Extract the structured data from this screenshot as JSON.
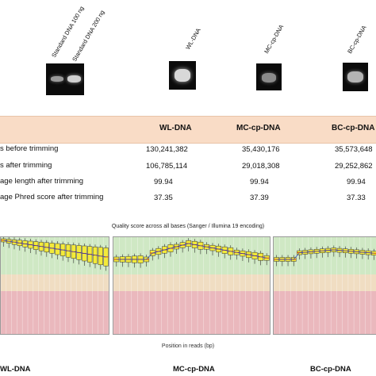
{
  "gel": {
    "lanes": [
      "Standard DNA 100 ng",
      "Standard DNA 200 ng",
      "WL-DNA",
      "MC-cp-DNA",
      "BC-cp-DNA"
    ]
  },
  "table": {
    "columns": [
      "WL-DNA",
      "MC-cp-DNA",
      "BC-cp-DNA"
    ],
    "rows": [
      {
        "label": "s before trimming",
        "values": [
          "130,241,382",
          "35,430,176",
          "35,573,648"
        ]
      },
      {
        "label": "s after trimming",
        "values": [
          "106,785,114",
          "29,018,308",
          "29,252,862"
        ]
      },
      {
        "label": "age length after trimming",
        "values": [
          "99.94",
          "99.94",
          "99.94"
        ]
      },
      {
        "label": "age Phred score after trimming",
        "values": [
          "37.35",
          "37.39",
          "37.33"
        ]
      }
    ]
  },
  "quality": {
    "title": "Quality score across all bases (Sanger / Illumina 19 encoding)",
    "xlabel": "Position in reads (bp)",
    "zone_colors": {
      "green": "#cfe8c4",
      "yellow": "#f0ddc2",
      "red": "#eab8bd"
    },
    "box_color": "#f3ea3a",
    "panels": [
      "WL-DNA",
      "MC-cp-DNA",
      "BC-cp-DNA"
    ]
  }
}
